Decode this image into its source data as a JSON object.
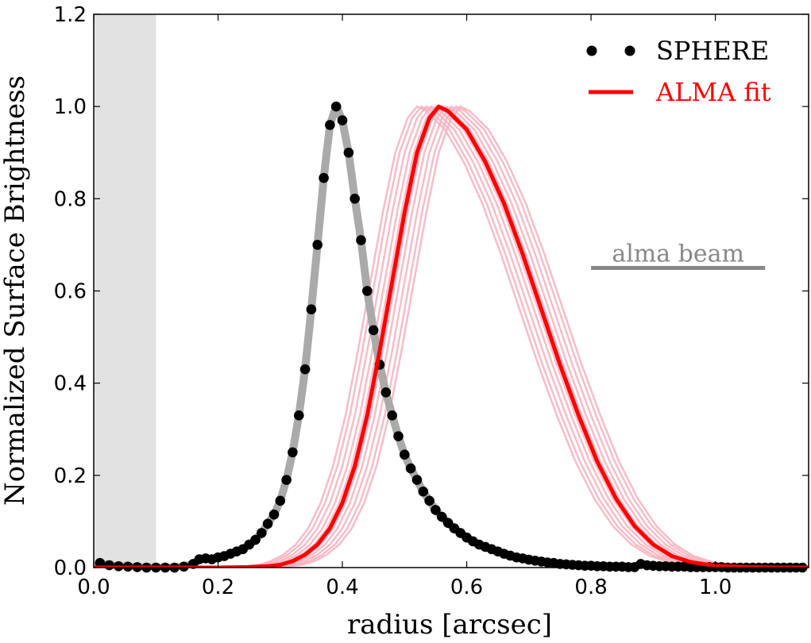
{
  "chart_data": {
    "type": "line",
    "xlabel": "radius [arcsec]",
    "ylabel": "Normalized Surface Brightness",
    "xlim": [
      0.0,
      1.15
    ],
    "ylim": [
      0.0,
      1.2
    ],
    "xticks": [
      0.0,
      0.2,
      0.4,
      0.6,
      0.8,
      1.0
    ],
    "xtick_labels": [
      "0.0",
      "0.2",
      "0.4",
      "0.6",
      "0.8",
      "1.0"
    ],
    "yticks": [
      0.0,
      0.2,
      0.4,
      0.6,
      0.8,
      1.0,
      1.2
    ],
    "ytick_labels": [
      "0.0",
      "0.2",
      "0.4",
      "0.6",
      "0.8",
      "1.0",
      "1.2"
    ],
    "grid": false,
    "legend_position": "top-right",
    "shaded_region": {
      "x0": 0.0,
      "x1": 0.1,
      "color": "#e2e2e2"
    },
    "colors": {
      "sphere_points": "#000000",
      "sphere_curve": "#aaaaaa",
      "alma_fit": "#ff0000",
      "alma_samples": "#f7b0bd",
      "beam": "#888888"
    },
    "series": [
      {
        "name": "SPHERE",
        "kind": "points",
        "x": [
          0.01,
          0.025,
          0.04,
          0.055,
          0.07,
          0.085,
          0.1,
          0.115,
          0.13,
          0.145,
          0.16,
          0.17,
          0.18,
          0.19,
          0.2,
          0.21,
          0.22,
          0.23,
          0.24,
          0.25,
          0.26,
          0.27,
          0.28,
          0.29,
          0.3,
          0.31,
          0.32,
          0.33,
          0.34,
          0.35,
          0.36,
          0.37,
          0.38,
          0.39,
          0.4,
          0.41,
          0.42,
          0.43,
          0.44,
          0.45,
          0.46,
          0.47,
          0.48,
          0.49,
          0.5,
          0.51,
          0.52,
          0.53,
          0.54,
          0.55,
          0.56,
          0.57,
          0.58,
          0.59,
          0.6,
          0.61,
          0.62,
          0.63,
          0.64,
          0.65,
          0.66,
          0.67,
          0.68,
          0.69,
          0.7,
          0.71,
          0.72,
          0.73,
          0.74,
          0.75,
          0.76,
          0.77,
          0.78,
          0.79,
          0.8,
          0.81,
          0.82,
          0.83,
          0.84,
          0.85,
          0.86,
          0.87,
          0.88,
          0.89,
          0.9,
          0.91,
          0.92,
          0.93,
          0.94,
          0.95,
          0.96,
          0.97,
          0.98,
          0.99,
          1.0,
          1.01,
          1.02,
          1.03,
          1.04,
          1.05,
          1.06,
          1.07,
          1.08,
          1.09,
          1.1,
          1.11,
          1.12,
          1.13,
          1.14
        ],
        "y": [
          0.01,
          0.005,
          0.003,
          0.002,
          0.001,
          0.0,
          0.0,
          0.0,
          0.0,
          0.002,
          0.008,
          0.018,
          0.02,
          0.018,
          0.022,
          0.025,
          0.03,
          0.035,
          0.04,
          0.05,
          0.06,
          0.075,
          0.095,
          0.115,
          0.145,
          0.19,
          0.25,
          0.33,
          0.43,
          0.56,
          0.7,
          0.845,
          0.96,
          1.0,
          0.97,
          0.9,
          0.8,
          0.71,
          0.6,
          0.515,
          0.44,
          0.38,
          0.33,
          0.285,
          0.245,
          0.215,
          0.19,
          0.165,
          0.145,
          0.125,
          0.11,
          0.097,
          0.085,
          0.075,
          0.065,
          0.057,
          0.05,
          0.045,
          0.04,
          0.035,
          0.03,
          0.026,
          0.022,
          0.02,
          0.017,
          0.015,
          0.013,
          0.011,
          0.01,
          0.008,
          0.007,
          0.006,
          0.005,
          0.004,
          0.004,
          0.003,
          0.003,
          0.002,
          0.002,
          0.002,
          0.001,
          0.001,
          0.008,
          0.005,
          0.004,
          0.003,
          0.003,
          0.002,
          0.002,
          0.002,
          0.001,
          0.001,
          0.001,
          0.001,
          0.001,
          0.001,
          0.0,
          0.0,
          0.0,
          0.0,
          0.0,
          0.0,
          0.0,
          0.0,
          0.0,
          0.0,
          0.0,
          0.0,
          0.0
        ]
      },
      {
        "name": "ALMA fit",
        "kind": "line",
        "x": [
          0.0,
          0.2,
          0.25,
          0.28,
          0.3,
          0.32,
          0.34,
          0.36,
          0.38,
          0.4,
          0.42,
          0.44,
          0.46,
          0.48,
          0.5,
          0.52,
          0.54,
          0.555,
          0.57,
          0.6,
          0.63,
          0.66,
          0.69,
          0.72,
          0.75,
          0.78,
          0.81,
          0.84,
          0.87,
          0.9,
          0.93,
          0.96,
          1.0,
          1.05,
          1.1,
          1.15
        ],
        "y": [
          0.0,
          0.0,
          0.001,
          0.003,
          0.006,
          0.014,
          0.028,
          0.05,
          0.085,
          0.14,
          0.22,
          0.33,
          0.47,
          0.62,
          0.77,
          0.9,
          0.975,
          1.0,
          0.99,
          0.95,
          0.88,
          0.79,
          0.68,
          0.56,
          0.44,
          0.33,
          0.23,
          0.15,
          0.09,
          0.05,
          0.025,
          0.012,
          0.004,
          0.001,
          0.0,
          0.0
        ]
      }
    ],
    "sample_shifts": [
      -0.035,
      -0.028,
      -0.02,
      -0.012,
      -0.005,
      0.005,
      0.012,
      0.02,
      0.028,
      0.035
    ],
    "legend": {
      "sphere_label": "SPHERE",
      "alma_label": "ALMA fit"
    },
    "annotations": {
      "beam_label": "alma beam",
      "beam_x": [
        0.8,
        1.08
      ],
      "beam_y": 0.65
    }
  }
}
